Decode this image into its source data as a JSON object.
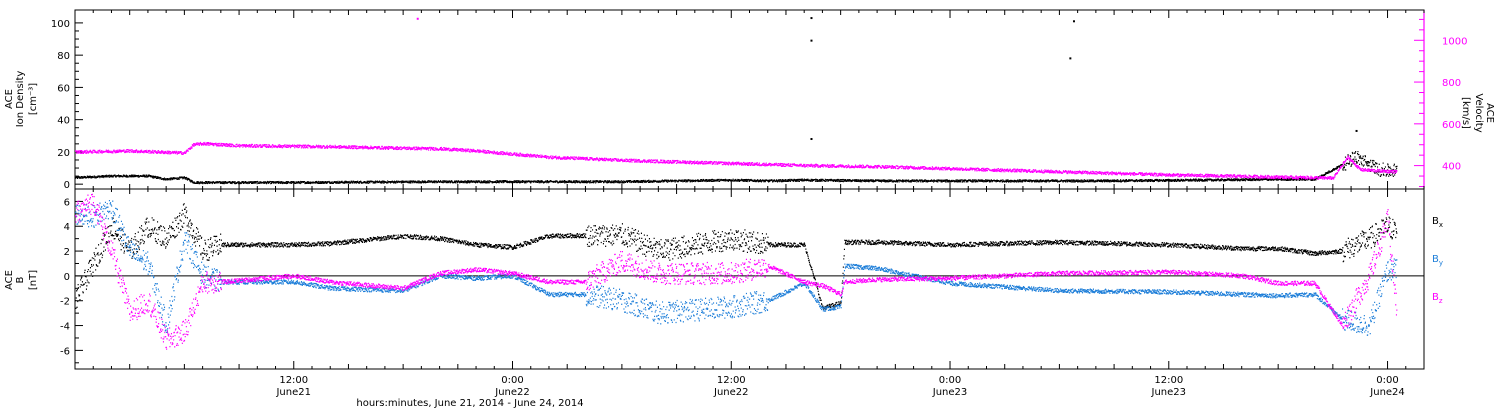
{
  "chart_data": [
    {
      "type": "scatter",
      "title": "",
      "x_unit": "hours since 2014-06-21 00:00 UT",
      "xlim": [
        0,
        74
      ],
      "left_axis": {
        "label_lines": [
          "ACE",
          "Ion Density",
          "[cm⁻³]"
        ],
        "ylim": [
          -3,
          108
        ],
        "ticks": [
          0,
          20,
          40,
          60,
          80,
          100
        ],
        "tick_labels": [
          "0",
          "20",
          "40",
          "60",
          "80",
          "100"
        ]
      },
      "right_axis": {
        "label_lines": [
          "ACE",
          "Velocity",
          "[km/s]"
        ],
        "ylim": [
          288,
          1145
        ],
        "ticks": [
          400,
          600,
          800,
          1000
        ],
        "tick_labels": [
          "400",
          "600",
          "800",
          "1000"
        ],
        "color": "#ff00ff"
      },
      "series": [
        {
          "key": "density",
          "color": "#000000",
          "x": [
            0,
            2,
            4,
            5,
            6,
            6.5,
            8,
            12,
            20,
            30,
            36,
            38,
            40,
            44,
            48,
            56,
            62,
            66,
            68,
            69.5,
            70.2,
            71.5,
            72.5
          ],
          "y": [
            4,
            5,
            5,
            3,
            4,
            1,
            1,
            1,
            1.5,
            1.5,
            2.5,
            2,
            2.5,
            2,
            2,
            2,
            2.5,
            3,
            3,
            12,
            17,
            9,
            8
          ]
        },
        {
          "key": "velocity",
          "color": "#ff00ff",
          "x": [
            0,
            3,
            6,
            6.5,
            7,
            9,
            14,
            20,
            22,
            24,
            26,
            30,
            36,
            40,
            44,
            48,
            54,
            60,
            66,
            69,
            69.8,
            70.5,
            72.5
          ],
          "y": [
            465,
            470,
            460,
            500,
            505,
            495,
            490,
            480,
            470,
            455,
            440,
            425,
            410,
            400,
            395,
            385,
            370,
            355,
            345,
            340,
            440,
            380,
            370
          ]
        }
      ],
      "outliers": [
        {
          "x": 18.8,
          "y": 1103,
          "series": "velocity"
        },
        {
          "x": 40.4,
          "y": 103,
          "series": "density"
        },
        {
          "x": 40.4,
          "y": 89,
          "series": "density"
        },
        {
          "x": 40.4,
          "y": 28,
          "series": "density"
        },
        {
          "x": 54.8,
          "y": 101,
          "series": "density"
        },
        {
          "x": 54.6,
          "y": 78,
          "series": "density"
        },
        {
          "x": 70.3,
          "y": 33,
          "series": "density"
        }
      ]
    },
    {
      "type": "scatter",
      "title": "",
      "x_unit": "hours since 2014-06-21 00:00 UT",
      "xlim": [
        0,
        74
      ],
      "y_axis": {
        "label_lines": [
          "ACE",
          "B",
          "[nT]"
        ],
        "ylim": [
          -7.5,
          7
        ],
        "ticks": [
          -6,
          -4,
          -2,
          0,
          2,
          4,
          6
        ],
        "tick_labels": [
          "-6",
          "-4",
          "-2",
          "0",
          "2",
          "4",
          "6"
        ]
      },
      "zero_line": true,
      "legend": {
        "placement": "right",
        "entries": [
          {
            "key": "Bx",
            "base": "B",
            "sub": "x",
            "color": "#000000"
          },
          {
            "key": "By",
            "base": "B",
            "sub": "y",
            "color": "#1f7fd9"
          },
          {
            "key": "Bz",
            "base": "B",
            "sub": "z",
            "color": "#ff00ff"
          }
        ]
      },
      "series": [
        {
          "key": "Bx",
          "color": "#000000",
          "x": [
            0,
            1,
            2,
            3,
            4,
            5,
            6,
            7,
            8,
            12,
            14,
            18,
            20,
            22,
            24,
            26,
            30,
            32,
            36,
            38,
            40,
            41,
            42,
            42.2,
            44,
            48,
            54,
            60,
            64,
            66,
            68,
            69.5,
            71,
            72,
            72.5
          ],
          "y": [
            -2,
            1,
            4,
            2,
            4,
            3,
            5,
            2,
            2.5,
            2.5,
            2.6,
            3.2,
            3,
            2.5,
            2.3,
            3.2,
            3.3,
            2,
            3,
            2.5,
            2.5,
            -2.6,
            -2.2,
            2.7,
            2.7,
            2.5,
            2.7,
            2.5,
            2.2,
            2.2,
            1.8,
            2,
            3,
            4,
            3.5
          ]
        },
        {
          "key": "By",
          "color": "#1f7fd9",
          "x": [
            0,
            1,
            2,
            3,
            4,
            5,
            6,
            7,
            8,
            12,
            14,
            18,
            20,
            22,
            24,
            26,
            28,
            30,
            32,
            36,
            38,
            40,
            41,
            42,
            42.2,
            44,
            48,
            54,
            60,
            64,
            66,
            68,
            69.5,
            71,
            72,
            72.5
          ],
          "y": [
            5,
            4.8,
            5.5,
            2,
            1,
            -4,
            3,
            0,
            -0.5,
            -0.5,
            -1,
            -1.2,
            0,
            -0.2,
            0,
            -1.5,
            -1.5,
            -2,
            -3,
            -2.5,
            -2,
            -0.6,
            -2.7,
            -2.5,
            0.8,
            0.6,
            -0.6,
            -1.2,
            -1.3,
            -1.5,
            -1.6,
            -1.5,
            -3.5,
            -4,
            0.5,
            0.5
          ]
        },
        {
          "key": "Bz",
          "color": "#ff00ff",
          "x": [
            0,
            1,
            2,
            3,
            4,
            5,
            6,
            7,
            8,
            12,
            14,
            18,
            20,
            22,
            24,
            26,
            28,
            30,
            32,
            36,
            38,
            40,
            41,
            42,
            42.2,
            44,
            48,
            54,
            60,
            64,
            66,
            68,
            69.5,
            71,
            72,
            72.5
          ],
          "y": [
            5,
            6,
            2,
            -3,
            -2,
            -5.2,
            -4.5,
            -0.5,
            -0.5,
            0,
            -0.5,
            -1,
            0.2,
            0.5,
            0.2,
            -0.5,
            -0.5,
            1.2,
            0.2,
            0.2,
            0.8,
            -0.5,
            -0.8,
            -1.5,
            -0.5,
            -0.3,
            -0.2,
            0.2,
            0.3,
            0,
            -0.6,
            -0.6,
            -4,
            0,
            4.5,
            -3
          ]
        }
      ]
    }
  ],
  "x_axis": {
    "ticks": [
      12,
      24,
      36,
      48,
      60,
      72
    ],
    "time_labels": [
      "12:00",
      "0:00",
      "12:00",
      "0:00",
      "12:00",
      "0:00"
    ],
    "date_labels": [
      "June21",
      "June22",
      "June22",
      "June23",
      "June23",
      "June24"
    ],
    "title": "hours:minutes, June 21, 2014 - June 24, 2014"
  }
}
